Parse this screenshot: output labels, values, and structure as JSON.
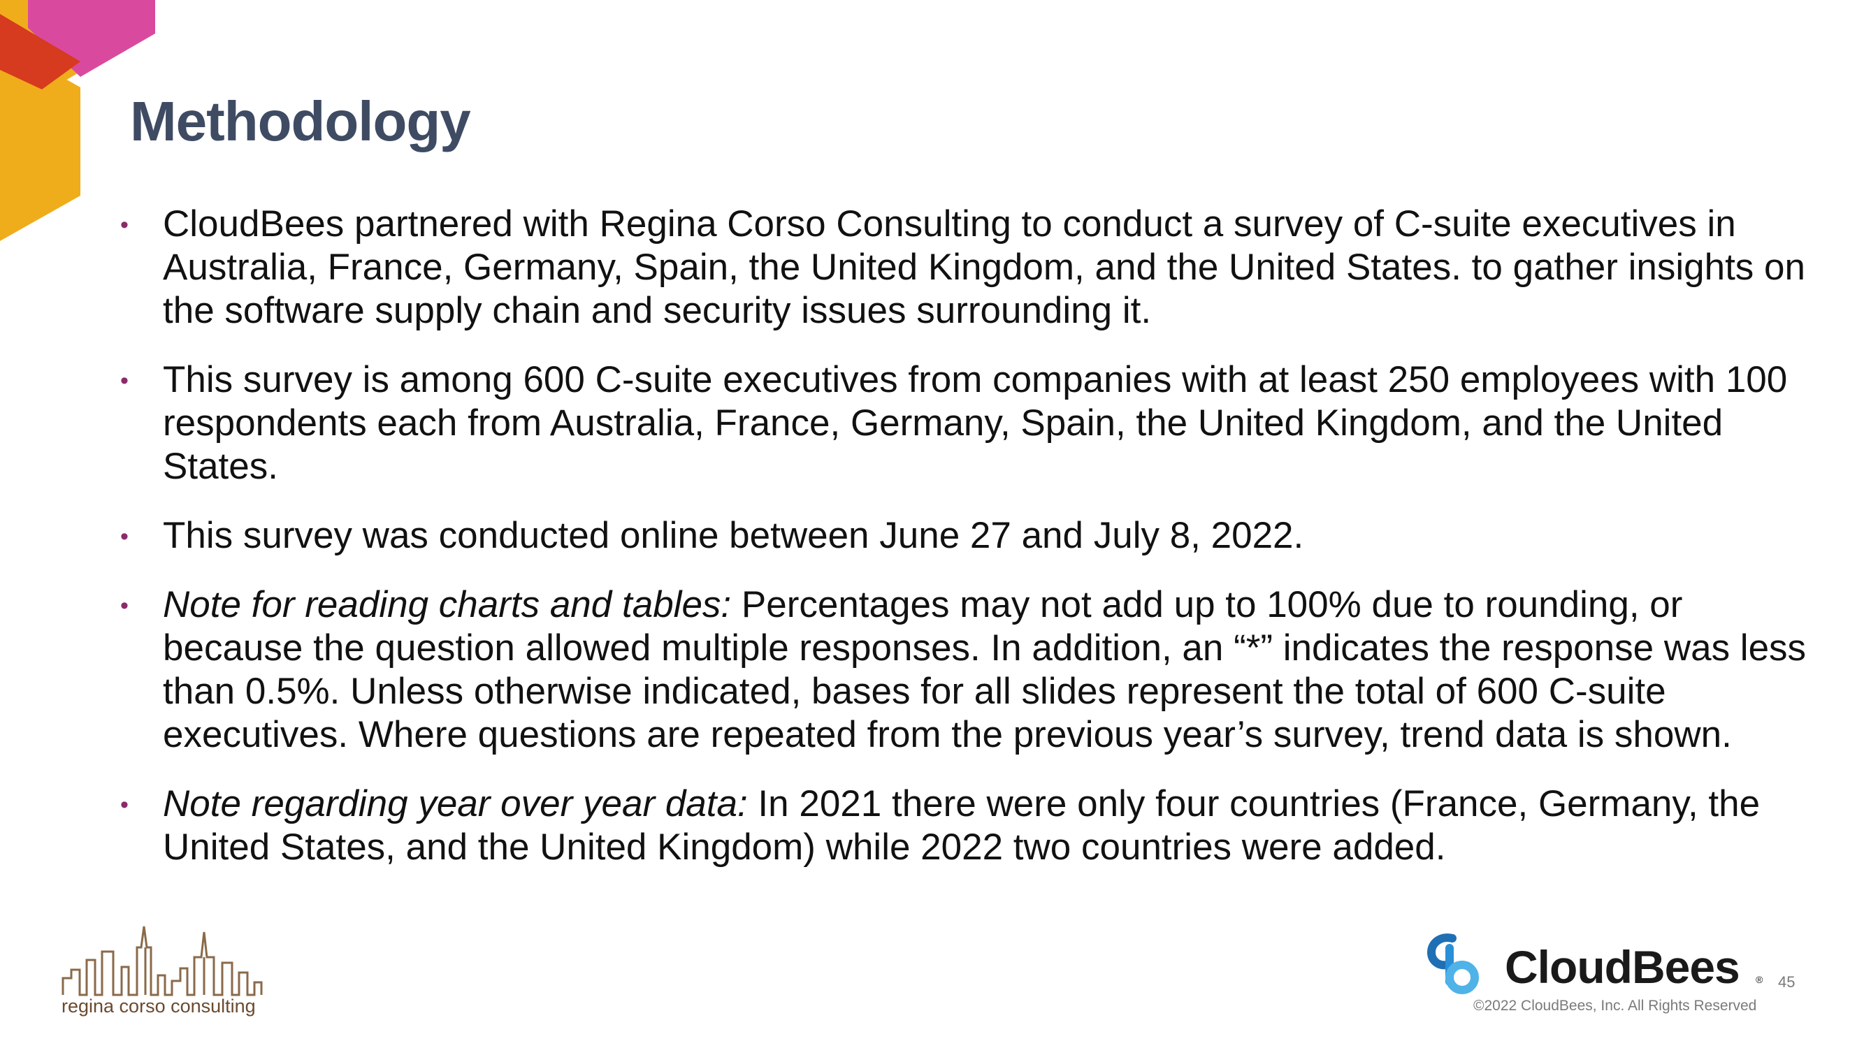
{
  "slide": {
    "title": "Methodology",
    "bullets": [
      {
        "lead": "",
        "text": "CloudBees partnered with Regina Corso Consulting to conduct a survey of C-suite executives in Australia, France, Germany, Spain, the United Kingdom, and the United States. to gather insights on the software supply chain and security issues surrounding it."
      },
      {
        "lead": "",
        "text": "This survey is among 600 C-suite executives from companies with at least 250 employees with 100 respondents each from Australia, France, Germany, Spain, the United Kingdom, and the United States."
      },
      {
        "lead": "",
        "text": "This survey was conducted online between June 27 and July 8, 2022."
      },
      {
        "lead": "Note for reading charts and tables:",
        "text": " Percentages may not add up to 100% due to rounding, or because the question allowed multiple responses. In addition, an “*” indicates the response was less than 0.5%. Unless otherwise indicated, bases for all slides represent the total of 600 C-suite executives. Where questions are repeated from the previous year’s survey, trend data is shown."
      },
      {
        "lead": "Note regarding year over year data:",
        "text": " In 2021 there were only four countries (France, Germany, the United States, and the United Kingdom) while 2022 two countries were added."
      }
    ],
    "bullet_glyph": "•"
  },
  "footer": {
    "consultant_logo_text": "regina corso consulting",
    "brand_name": "CloudBees",
    "brand_mark": "®",
    "page_number": "45",
    "copyright": "©2022 CloudBees, Inc. All Rights Reserved"
  },
  "colors": {
    "title": "#3e4b63",
    "corner_magenta": "#d94a9e",
    "corner_red": "#d63a1f",
    "corner_yellow": "#f0ad1b",
    "brand_blue": "#2a8fd6",
    "consultant_brown": "#6b4a2f"
  }
}
